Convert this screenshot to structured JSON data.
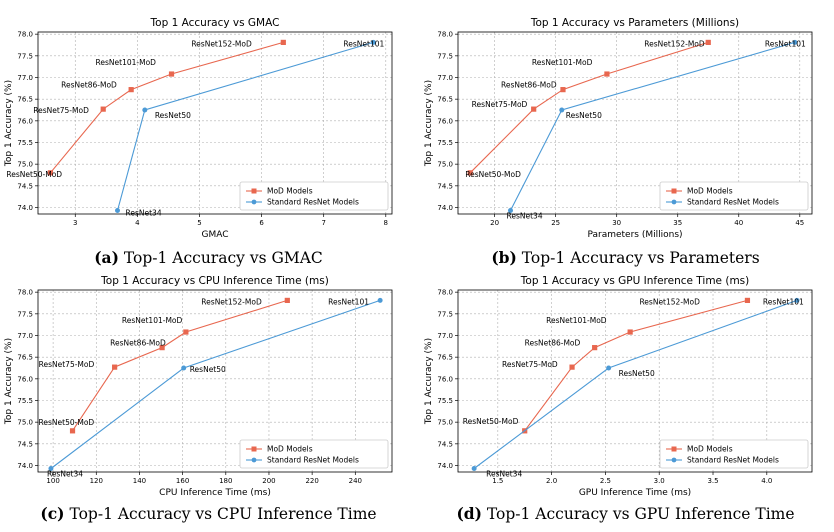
{
  "chart_data": [
    {
      "type": "line",
      "title": "Top 1 Accuracy vs GMAC",
      "caption_tag": "(a)",
      "caption_text": "Top-1 Accuracy vs GMAC",
      "xlabel": "GMAC",
      "ylabel": "Top 1 Accuracy (%)",
      "xlim": [
        2.4,
        8.1
      ],
      "ylim": [
        73.85,
        78.05
      ],
      "xticks": [
        3,
        4,
        5,
        6,
        7,
        8
      ],
      "xtick_labels": [
        "3",
        "4",
        "5",
        "6",
        "7",
        "8"
      ],
      "yticks": [
        74.0,
        74.5,
        75.0,
        75.5,
        76.0,
        76.5,
        77.0,
        77.5,
        78.0
      ],
      "ytick_labels": [
        "74.0",
        "74.5",
        "75.0",
        "75.5",
        "76.0",
        "76.5",
        "77.0",
        "77.5",
        "78.0"
      ],
      "legend_position": "bottom-right",
      "series": [
        {
          "name": "MoD Models",
          "color": "#e8674f",
          "marker": "square",
          "points": [
            {
              "label": "ResNet50-MoD",
              "x": 2.6,
              "y": 74.8
            },
            {
              "label": "ResNet75-MoD",
              "x": 3.45,
              "y": 76.27
            },
            {
              "label": "ResNet86-MoD",
              "x": 3.9,
              "y": 76.72
            },
            {
              "label": "ResNet101-MoD",
              "x": 4.55,
              "y": 77.08
            },
            {
              "label": "ResNet152-MoD",
              "x": 6.35,
              "y": 77.81
            }
          ]
        },
        {
          "name": "Standard ResNet Models",
          "color": "#4c9ad6",
          "marker": "circle",
          "points": [
            {
              "label": "ResNet34",
              "x": 3.68,
              "y": 73.93
            },
            {
              "label": "ResNet50",
              "x": 4.12,
              "y": 76.25
            },
            {
              "label": "ResNet101",
              "x": 7.8,
              "y": 77.81
            }
          ]
        }
      ]
    },
    {
      "type": "line",
      "title": "Top 1 Accuracy vs Parameters (Millions)",
      "caption_tag": "(b)",
      "caption_text": "Top-1 Accuracy vs Parameters",
      "xlabel": "Parameters (Millions)",
      "ylabel": "Top 1 Accuracy (%)",
      "xlim": [
        17.0,
        46.0
      ],
      "ylim": [
        73.85,
        78.05
      ],
      "xticks": [
        20,
        25,
        30,
        35,
        40,
        45
      ],
      "xtick_labels": [
        "20",
        "25",
        "30",
        "35",
        "40",
        "45"
      ],
      "yticks": [
        74.0,
        74.5,
        75.0,
        75.5,
        76.0,
        76.5,
        77.0,
        77.5,
        78.0
      ],
      "ytick_labels": [
        "74.0",
        "74.5",
        "75.0",
        "75.5",
        "76.0",
        "76.5",
        "77.0",
        "77.5",
        "78.0"
      ],
      "legend_position": "bottom-right",
      "series": [
        {
          "name": "MoD Models",
          "color": "#e8674f",
          "marker": "square",
          "points": [
            {
              "label": "ResNet50-MoD",
              "x": 18.0,
              "y": 74.8
            },
            {
              "label": "ResNet75-MoD",
              "x": 23.2,
              "y": 76.27
            },
            {
              "label": "ResNet86-MoD",
              "x": 25.6,
              "y": 76.72
            },
            {
              "label": "ResNet101-MoD",
              "x": 29.2,
              "y": 77.08
            },
            {
              "label": "ResNet152-MoD",
              "x": 37.5,
              "y": 77.81
            }
          ]
        },
        {
          "name": "Standard ResNet Models",
          "color": "#4c9ad6",
          "marker": "circle",
          "points": [
            {
              "label": "ResNet34",
              "x": 21.3,
              "y": 73.93
            },
            {
              "label": "ResNet50",
              "x": 25.5,
              "y": 76.25
            },
            {
              "label": "ResNet101",
              "x": 44.6,
              "y": 77.81
            }
          ]
        }
      ]
    },
    {
      "type": "line",
      "title": "Top 1 Accuracy vs CPU Inference Time (ms)",
      "caption_tag": "(c)",
      "caption_text": "Top-1 Accuracy vs CPU Inference Time",
      "xlabel": "CPU Inference Time (ms)",
      "ylabel": "Top 1 Accuracy (%)",
      "xlim": [
        93.0,
        257.0
      ],
      "ylim": [
        73.85,
        78.05
      ],
      "xticks": [
        100,
        120,
        140,
        160,
        180,
        200,
        220,
        240
      ],
      "xtick_labels": [
        "100",
        "120",
        "140",
        "160",
        "180",
        "200",
        "220",
        "240"
      ],
      "yticks": [
        74.0,
        74.5,
        75.0,
        75.5,
        76.0,
        76.5,
        77.0,
        77.5,
        78.0
      ],
      "ytick_labels": [
        "74.0",
        "74.5",
        "75.0",
        "75.5",
        "76.0",
        "76.5",
        "77.0",
        "77.5",
        "78.0"
      ],
      "legend_position": "bottom-right",
      "series": [
        {
          "name": "MoD Models",
          "color": "#e8674f",
          "marker": "square",
          "points": [
            {
              "label": "ResNet50-MoD",
              "x": 109.0,
              "y": 74.8
            },
            {
              "label": "ResNet75-MoD",
              "x": 128.5,
              "y": 76.27
            },
            {
              "label": "ResNet86-MoD",
              "x": 150.5,
              "y": 76.72
            },
            {
              "label": "ResNet101-MoD",
              "x": 161.5,
              "y": 77.08
            },
            {
              "label": "ResNet152-MoD",
              "x": 208.5,
              "y": 77.81
            }
          ]
        },
        {
          "name": "Standard ResNet Models",
          "color": "#4c9ad6",
          "marker": "circle",
          "points": [
            {
              "label": "ResNet34",
              "x": 99.0,
              "y": 73.93
            },
            {
              "label": "ResNet50",
              "x": 160.5,
              "y": 76.25
            },
            {
              "label": "ResNet101",
              "x": 251.5,
              "y": 77.81
            }
          ]
        }
      ]
    },
    {
      "type": "line",
      "title": "Top 1 Accuracy vs GPU Inference Time (ms)",
      "caption_tag": "(d)",
      "caption_text": "Top-1 Accuracy vs GPU Inference Time",
      "xlabel": "GPU Inference Time (ms)",
      "ylabel": "Top 1 Accuracy (%)",
      "xlim": [
        1.13,
        4.42
      ],
      "ylim": [
        73.85,
        78.05
      ],
      "xticks": [
        1.5,
        2.0,
        2.5,
        3.0,
        3.5,
        4.0
      ],
      "xtick_labels": [
        "1.5",
        "2.0",
        "2.5",
        "3.0",
        "3.5",
        "4.0"
      ],
      "yticks": [
        74.0,
        74.5,
        75.0,
        75.5,
        76.0,
        76.5,
        77.0,
        77.5,
        78.0
      ],
      "ytick_labels": [
        "74.0",
        "74.5",
        "75.0",
        "75.5",
        "76.0",
        "76.5",
        "77.0",
        "77.5",
        "78.0"
      ],
      "legend_position": "bottom-right",
      "series": [
        {
          "name": "MoD Models",
          "color": "#e8674f",
          "marker": "square",
          "points": [
            {
              "label": "ResNet50-MoD",
              "x": 1.75,
              "y": 74.8
            },
            {
              "label": "ResNet75-MoD",
              "x": 2.19,
              "y": 76.27
            },
            {
              "label": "ResNet86-MoD",
              "x": 2.4,
              "y": 76.72
            },
            {
              "label": "ResNet101-MoD",
              "x": 2.73,
              "y": 77.08
            },
            {
              "label": "ResNet152-MoD",
              "x": 3.82,
              "y": 77.81
            }
          ]
        },
        {
          "name": "Standard ResNet Models",
          "color": "#4c9ad6",
          "marker": "circle",
          "points": [
            {
              "label": "ResNet34",
              "x": 1.28,
              "y": 73.93
            },
            {
              "label": "ResNet50",
              "x": 2.53,
              "y": 76.25
            },
            {
              "label": "ResNet101",
              "x": 4.28,
              "y": 77.81
            }
          ]
        }
      ]
    }
  ]
}
